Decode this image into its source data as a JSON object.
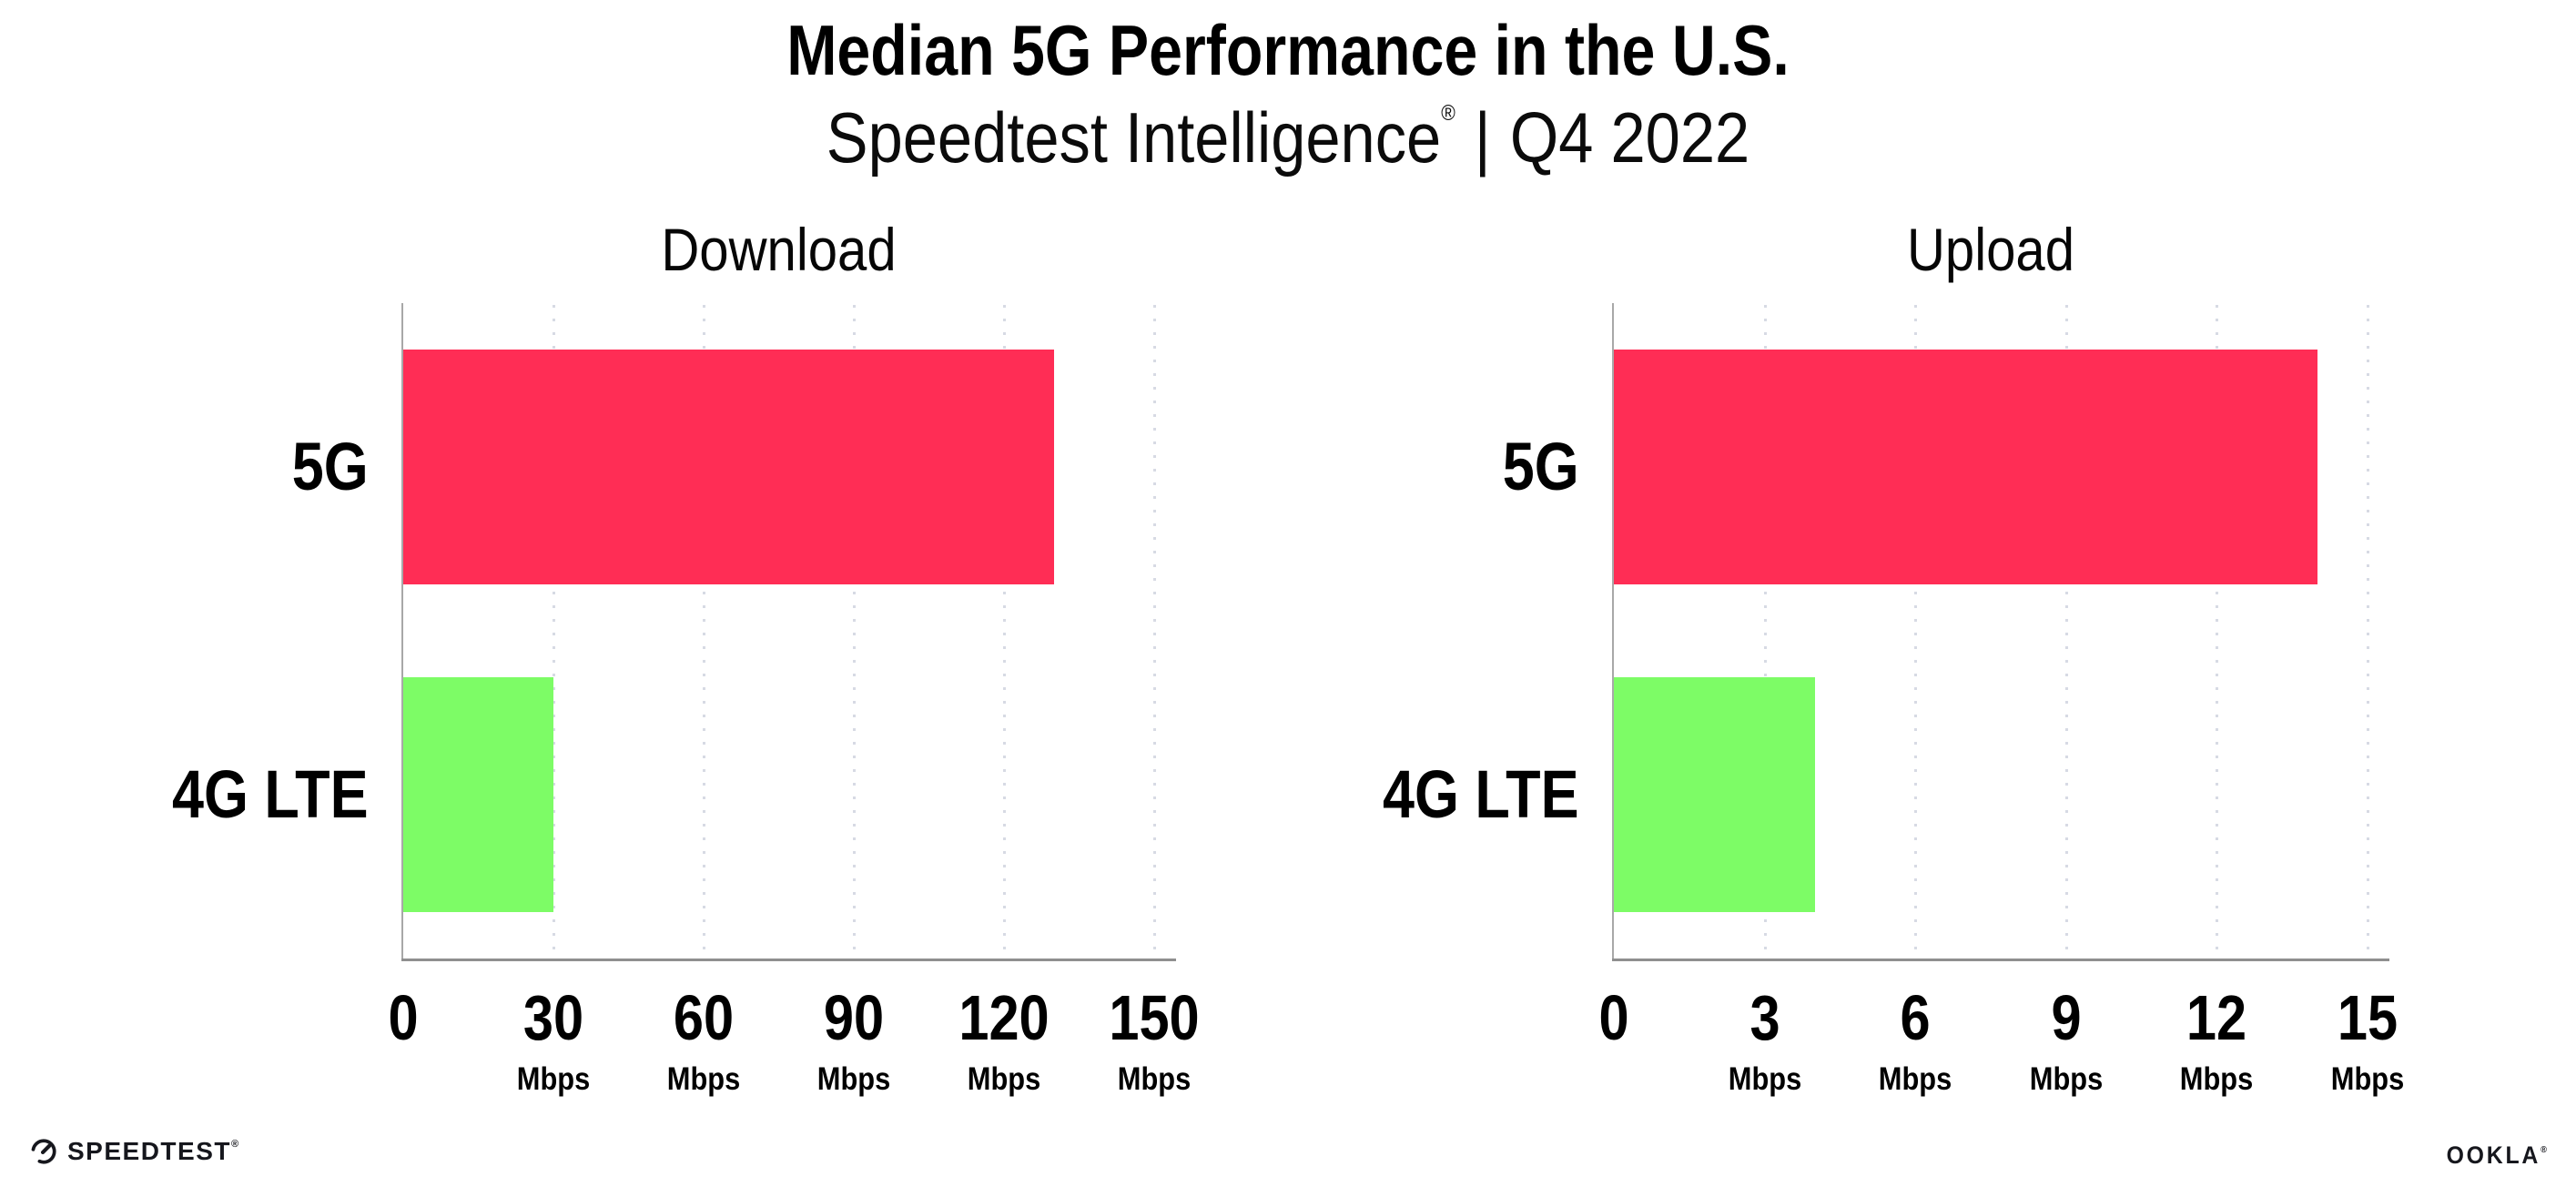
{
  "header": {
    "title": "Median 5G Performance in the U.S.",
    "subtitle_brand": "Speedtest Intelligence",
    "subtitle_registered": "®",
    "subtitle_separator": "|",
    "subtitle_period": "Q4 2022"
  },
  "colors": {
    "bar_5g": "#FF2D55",
    "bar_4g_lte": "#7DFC66",
    "axis": "#8F8F8F",
    "gridline": "#D7DAE4",
    "text": "#000000",
    "logo": "#16171D"
  },
  "chart_data": [
    {
      "type": "bar",
      "orientation": "horizontal",
      "title": "Download",
      "categories": [
        "5G",
        "4G LTE"
      ],
      "values": [
        130,
        30
      ],
      "unit": "Mbps",
      "xlim": [
        0,
        150
      ],
      "xticks": [
        0,
        30,
        60,
        90,
        120,
        150
      ],
      "grid": "dotted-vertical",
      "legend": "none",
      "bar_colors": [
        "#FF2D55",
        "#7DFC66"
      ]
    },
    {
      "type": "bar",
      "orientation": "horizontal",
      "title": "Upload",
      "categories": [
        "5G",
        "4G LTE"
      ],
      "values": [
        14,
        4
      ],
      "unit": "Mbps",
      "xlim": [
        0,
        15
      ],
      "xticks": [
        0,
        3,
        6,
        9,
        12,
        15
      ],
      "grid": "dotted-vertical",
      "legend": "none",
      "bar_colors": [
        "#FF2D55",
        "#7DFC66"
      ]
    }
  ],
  "footer": {
    "speedtest_label": "SPEEDTEST",
    "speedtest_registered": "®",
    "ookla_label": "OOKLA",
    "ookla_registered": "®"
  }
}
